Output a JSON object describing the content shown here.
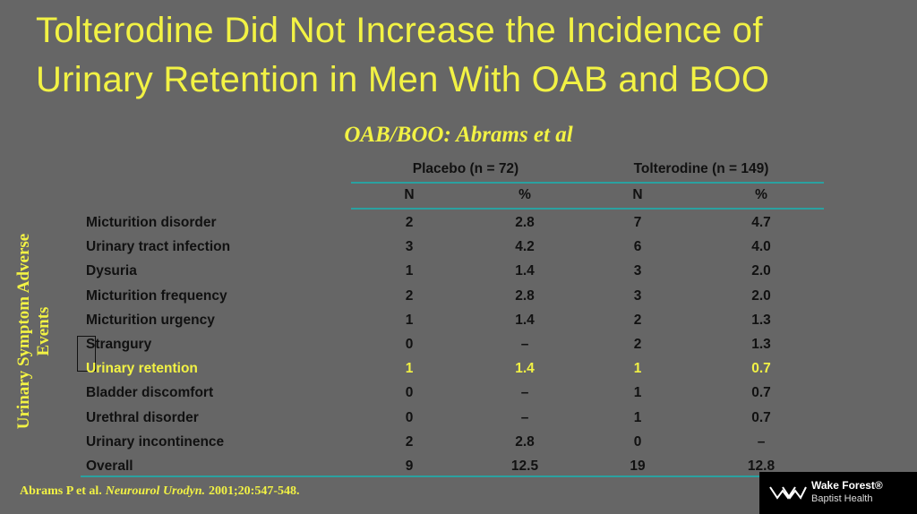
{
  "header": {
    "title_line1": "Tolterodine Did Not Increase the Incidence of",
    "title_line2": "Urinary Retention in Men With OAB and BOO",
    "subtitle": "OAB/BOO: Abrams et al"
  },
  "side_label": {
    "line1": "Urinary Symptom Adverse",
    "line2": "Events"
  },
  "table": {
    "groups": [
      "Placebo (n = 72)",
      "Tolterodine (n = 149)"
    ],
    "columns": [
      "N",
      "%",
      "N",
      "%"
    ],
    "rows": [
      [
        "Micturition disorder",
        "2",
        "2.8",
        "7",
        "4.7"
      ],
      [
        "Urinary tract infection",
        "3",
        "4.2",
        "6",
        "4.0"
      ],
      [
        "Dysuria",
        "1",
        "1.4",
        "3",
        "2.0"
      ],
      [
        "Micturition frequency",
        "2",
        "2.8",
        "3",
        "2.0"
      ],
      [
        "Micturition urgency",
        "1",
        "1.4",
        "2",
        "1.3"
      ],
      [
        "Strangury",
        "0",
        "–",
        "2",
        "1.3"
      ],
      [
        "Urinary retention",
        "1",
        "1.4",
        "1",
        "0.7"
      ],
      [
        "Bladder discomfort",
        "0",
        "–",
        "1",
        "0.7"
      ],
      [
        "Urethral disorder",
        "0",
        "–",
        "1",
        "0.7"
      ],
      [
        "Urinary incontinence",
        "2",
        "2.8",
        "0",
        "–"
      ],
      [
        "Overall",
        "9",
        "12.5",
        "19",
        "12.8"
      ]
    ]
  },
  "citation": {
    "author": "Abrams P et al.",
    "journal": "Neurourol Urodyn.",
    "details": "2001;20:547-548."
  },
  "logo": {
    "name": "Wake Forest®",
    "sub": "Baptist Health"
  }
}
